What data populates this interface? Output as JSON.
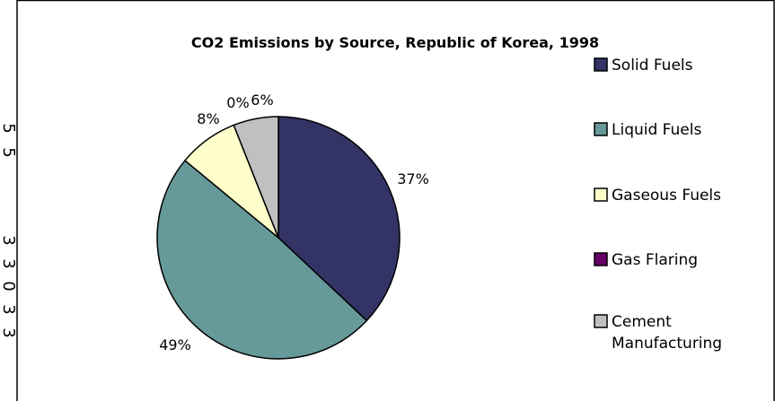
{
  "chart_data": {
    "type": "pie",
    "title": "CO2 Emissions by Source, Republic of Korea, 1998",
    "categories": [
      "Solid Fuels",
      "Liquid Fuels",
      "Gaseous Fuels",
      "Gas Flaring",
      "Cement Manufacturing"
    ],
    "values": [
      37,
      49,
      8,
      0,
      6
    ],
    "labels": [
      "37%",
      "49%",
      "8%",
      "0%",
      "6%"
    ],
    "colors": [
      "#333366",
      "#669999",
      "#ffffcc",
      "#660066",
      "#c0c0c0"
    ],
    "legend_position": "right"
  },
  "legend": {
    "items": [
      {
        "lines": [
          "Solid Fuels"
        ]
      },
      {
        "lines": [
          "Liquid Fuels"
        ]
      },
      {
        "lines": [
          "Gaseous Fuels"
        ]
      },
      {
        "lines": [
          "Gas Flaring"
        ]
      },
      {
        "lines": [
          "Cement",
          "Manufacturing"
        ]
      }
    ]
  },
  "edge_fragments": [
    "5",
    "5",
    "3",
    "3",
    "0",
    "3",
    "3"
  ]
}
